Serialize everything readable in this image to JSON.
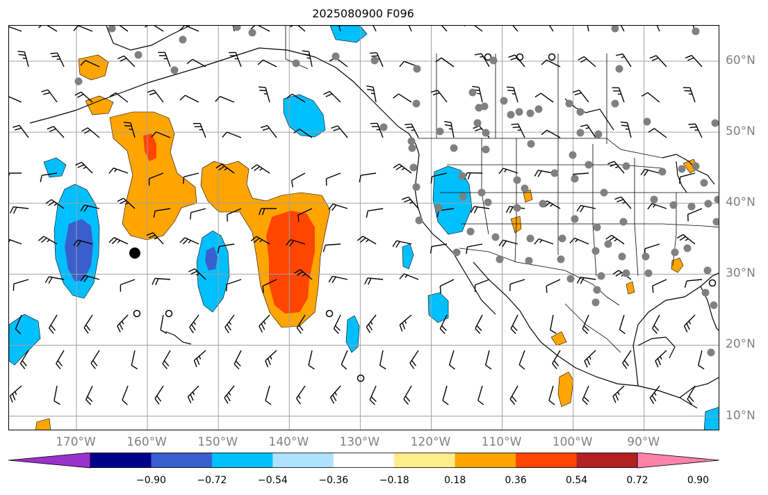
{
  "title": "2025080900 F096",
  "map": {
    "lon_labels": [
      {
        "lon": -170,
        "text": "170°W"
      },
      {
        "lon": -160,
        "text": "160°W"
      },
      {
        "lon": -150,
        "text": "150°W"
      },
      {
        "lon": -140,
        "text": "140°W"
      },
      {
        "lon": -130,
        "text": "130°W"
      },
      {
        "lon": -120,
        "text": "120°W"
      },
      {
        "lon": -110,
        "text": "110°W"
      },
      {
        "lon": -100,
        "text": "100°W"
      },
      {
        "lon": -90,
        "text": "90°W"
      }
    ],
    "lat_labels": [
      {
        "lat": 60,
        "text": "60°N"
      },
      {
        "lat": 50,
        "text": "50°N"
      },
      {
        "lat": 40,
        "text": "40°N"
      },
      {
        "lat": 30,
        "text": "30°N"
      },
      {
        "lat": 20,
        "text": "20°N"
      },
      {
        "lat": 10,
        "text": "10°N"
      }
    ],
    "extent": {
      "lon_min": -179.5,
      "lon_max": -79.3,
      "lat_min": 7.9,
      "lat_max": 65
    },
    "layers": [
      "filled contours",
      "wind barbs",
      "station dots",
      "coastlines",
      "state borders",
      "gridlines"
    ]
  },
  "colorbar": {
    "levels": [
      -0.9,
      -0.72,
      -0.54,
      -0.36,
      -0.18,
      0.18,
      0.36,
      0.54,
      0.72,
      0.9
    ],
    "tick_labels": [
      "−0.90",
      "−0.72",
      "−0.54",
      "−0.36",
      "−0.18",
      "0.18",
      "0.36",
      "0.54",
      "0.72",
      "0.90"
    ],
    "colors": [
      "#9932cc",
      "#00008b",
      "#3a5fcd",
      "#00bfff",
      "#b0e2ff",
      "#ffffff",
      "#ffec8b",
      "#ffa500",
      "#ff4500",
      "#b22222",
      "#ff82ab"
    ]
  }
}
